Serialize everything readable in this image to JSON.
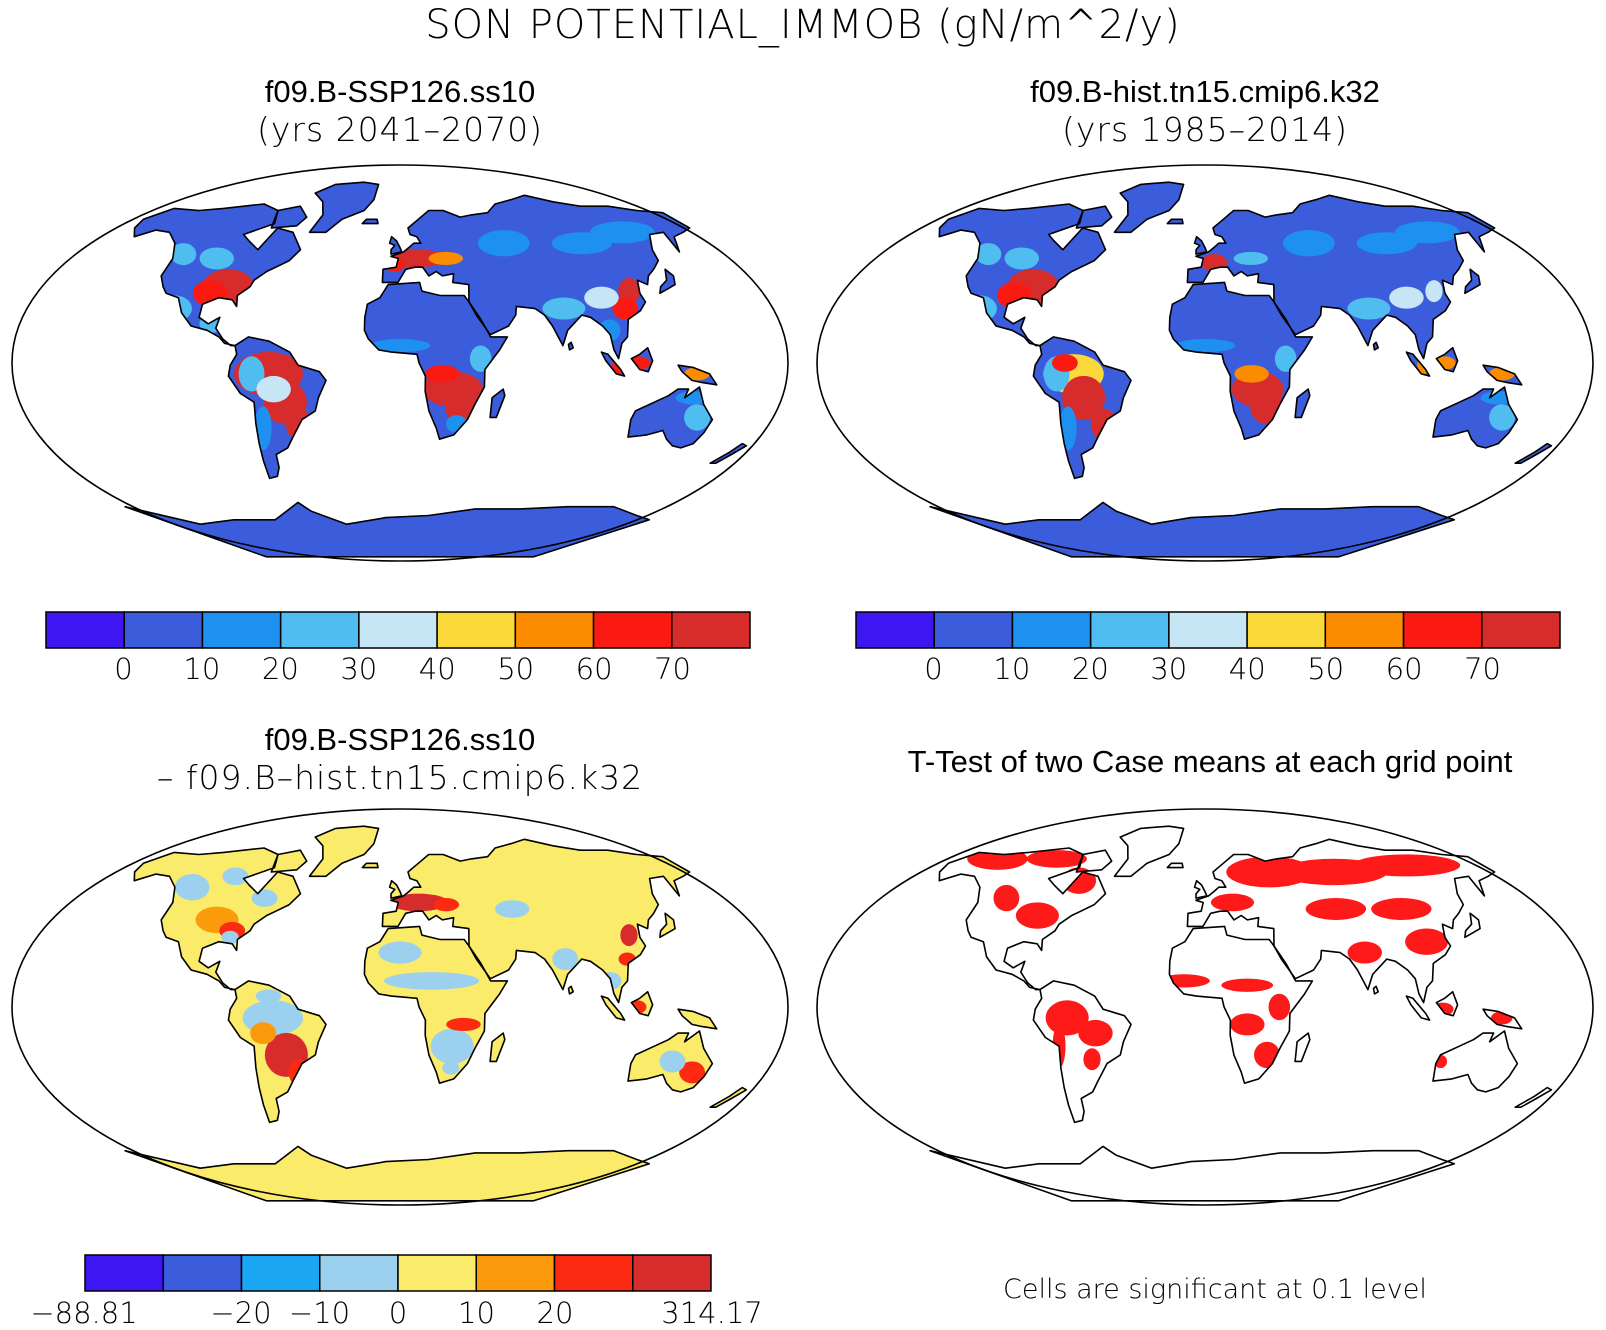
{
  "title": "SON POTENTIAL_IMMOB (gN/m^2/y)",
  "colors": {
    "base": [
      "#3d16f2",
      "#3c5ddb",
      "#1e90f0",
      "#4fbdf0",
      "#c6e6f6",
      "#fbd93a",
      "#fb8c00",
      "#fb1a12",
      "#d62c2c"
    ],
    "diff": [
      "#3d16f2",
      "#3c5ddb",
      "#1aa6f2",
      "#9bd0ee",
      "#fbeb6a",
      "#fb9b0b",
      "#fb2a10",
      "#d62c2c"
    ],
    "signif": "#ff1a1a",
    "land_outline": "#000000"
  },
  "panels": [
    {
      "title": "f09.B-SSP126.ss10",
      "subtitle": "(yrs 2041–2070)",
      "colorbar_labels": [
        "0",
        "10",
        "20",
        "30",
        "40",
        "50",
        "60",
        "70"
      ]
    },
    {
      "title": "f09.B-hist.tn15.cmip6.k32",
      "subtitle": "(yrs 1985–2014)",
      "colorbar_labels": [
        "0",
        "10",
        "20",
        "30",
        "40",
        "50",
        "60",
        "70"
      ]
    },
    {
      "title": "f09.B-SSP126.ss10",
      "subtitle": "– f09.B–hist.tn15.cmip6.k32",
      "colorbar_labels": [
        "−88.81",
        "−20",
        "−10",
        "0",
        "10",
        "20",
        "314.17"
      ]
    },
    {
      "title": "T-Test of two Case means at each grid point",
      "note": "Cells are significant at 0.1 level"
    }
  ]
}
